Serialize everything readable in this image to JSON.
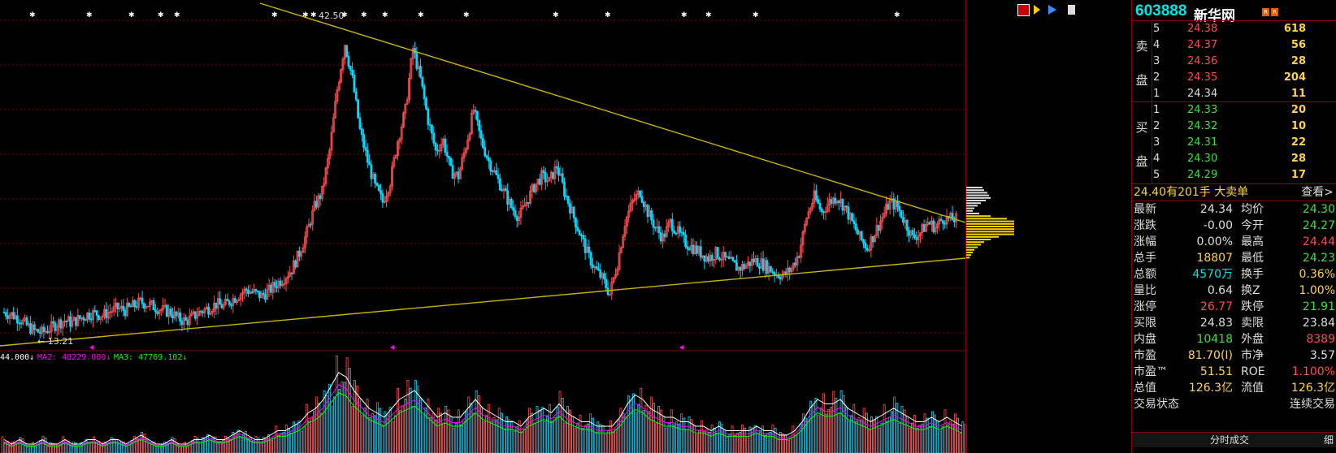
{
  "app": {
    "markers_top": [
      "42.50"
    ],
    "low_label": "13.21"
  },
  "ma_legend": {
    "ma1": "44.000↓",
    "ma2": "MA2: 48229.000↓",
    "ma3": "MA3: 47769.102↓",
    "ma1_color": "#ffffff",
    "ma2_color": "#ff00ff",
    "ma3_color": "#00ff00"
  },
  "colors": {
    "up": "#ff4c4c",
    "down": "#00d8ff",
    "grid": "#8b0000",
    "trendline": "#c8b400",
    "volume_profile": "#ffd700"
  },
  "stock": {
    "code": "603888",
    "name": "新华网",
    "badge": "R"
  },
  "sell_label": [
    "卖",
    "盘"
  ],
  "buy_label": [
    "买",
    "盘"
  ],
  "sell_orders": [
    {
      "level": "5",
      "price": "24.38",
      "volume": "618"
    },
    {
      "level": "4",
      "price": "24.37",
      "volume": "56"
    },
    {
      "level": "3",
      "price": "24.36",
      "volume": "28"
    },
    {
      "level": "2",
      "price": "24.35",
      "volume": "204"
    },
    {
      "level": "1",
      "price": "24.34",
      "volume": "11"
    }
  ],
  "buy_orders": [
    {
      "level": "1",
      "price": "24.33",
      "volume": "20"
    },
    {
      "level": "2",
      "price": "24.32",
      "volume": "10"
    },
    {
      "level": "3",
      "price": "24.31",
      "volume": "22"
    },
    {
      "level": "4",
      "price": "24.30",
      "volume": "28"
    },
    {
      "level": "5",
      "price": "24.29",
      "volume": "17"
    }
  ],
  "big_order": {
    "text": "24.40有201手 大卖单",
    "action": "查看>"
  },
  "quote": [
    {
      "l1": "最新",
      "v1": "24.34",
      "c1": "wht",
      "l2": "均价",
      "v2": "24.30",
      "c2": "grn"
    },
    {
      "l1": "涨跌",
      "v1": "-0.00",
      "c1": "wht",
      "l2": "今开",
      "v2": "24.27",
      "c2": "grn"
    },
    {
      "l1": "涨幅",
      "v1": "0.00%",
      "c1": "wht",
      "l2": "最高",
      "v2": "24.44",
      "c2": "red"
    },
    {
      "l1": "总手",
      "v1": "18807",
      "c1": "yel",
      "l2": "最低",
      "v2": "24.23",
      "c2": "grn"
    },
    {
      "l1": "总额",
      "v1": "4570万",
      "c1": "cyn",
      "l2": "换手",
      "v2": "0.36%",
      "c2": "yel"
    },
    {
      "l1": "量比",
      "v1": "0.64",
      "c1": "wht",
      "l2": "换Z",
      "v2": "1.00%",
      "c2": "yel"
    },
    {
      "l1": "涨停",
      "v1": "26.77",
      "c1": "red",
      "l2": "跌停",
      "v2": "21.91",
      "c2": "grn"
    },
    {
      "l1": "买限",
      "v1": "24.83",
      "c1": "wht",
      "l2": "卖限",
      "v2": "23.84",
      "c2": "wht"
    },
    {
      "l1": "内盘",
      "v1": "10418",
      "c1": "grn",
      "l2": "外盘",
      "v2": "8389",
      "c2": "red"
    },
    {
      "l1": "市盈",
      "v1": "81.70(I)",
      "c1": "yel",
      "l2": "市净",
      "v2": "3.57",
      "c2": "wht"
    },
    {
      "l1": "市盈™",
      "v1": "51.51",
      "c1": "yel",
      "l2": "ROE",
      "v2": "1.100%",
      "c2": "red"
    },
    {
      "l1": "总值",
      "v1": "126.3亿",
      "c1": "yel",
      "l2": "流值",
      "v2": "126.3亿",
      "c2": "yel"
    },
    {
      "l1": "交易状态",
      "v1": "",
      "c1": "wht",
      "l2": "",
      "v2": "连续交易",
      "c2": "wht"
    }
  ],
  "tick_header": {
    "title": "分时成交",
    "right": "细"
  },
  "chart_data": {
    "type": "candlestick",
    "symbol": "603888",
    "y_range": [
      12.0,
      44.0
    ],
    "close_series": [
      15.2,
      15.0,
      14.6,
      13.9,
      13.4,
      13.21,
      13.6,
      14.1,
      14.4,
      14.2,
      14.6,
      15.0,
      15.1,
      14.9,
      15.3,
      15.6,
      15.4,
      15.8,
      16.2,
      16.0,
      15.7,
      15.4,
      15.2,
      14.6,
      14.3,
      14.8,
      15.3,
      15.6,
      16.0,
      15.8,
      16.4,
      16.9,
      17.4,
      17.1,
      16.8,
      17.3,
      18.0,
      18.6,
      19.4,
      21.0,
      23.0,
      25.5,
      27.0,
      31.0,
      37.0,
      41.5,
      38.0,
      33.0,
      30.0,
      27.5,
      26.0,
      28.0,
      32.0,
      35.0,
      41.0,
      38.0,
      34.0,
      31.0,
      32.0,
      29.0,
      28.5,
      31.5,
      35.0,
      32.0,
      30.0,
      28.5,
      27.0,
      25.5,
      24.5,
      26.0,
      27.5,
      28.5,
      28.0,
      29.5,
      27.0,
      25.0,
      23.0,
      21.0,
      19.5,
      18.5,
      17.0,
      20.0,
      24.0,
      26.0,
      27.0,
      25.0,
      23.5,
      22.5,
      24.0,
      23.0,
      22.0,
      21.5,
      21.0,
      20.5,
      21.0,
      20.5,
      20.0,
      19.5,
      19.8,
      20.3,
      20.0,
      19.5,
      19.0,
      18.8,
      19.5,
      21.0,
      24.5,
      26.5,
      25.0,
      26.0,
      26.5,
      25.5,
      24.0,
      22.5,
      21.5,
      23.0,
      24.5,
      26.0,
      25.5,
      24.0,
      22.5,
      23.0,
      24.0,
      23.5,
      24.4,
      24.3,
      24.34
    ],
    "volume_series": [
      3,
      2,
      3,
      2,
      2,
      3,
      2,
      2,
      3,
      2,
      2,
      3,
      3,
      2,
      3,
      3,
      2,
      3,
      4,
      3,
      2,
      2,
      3,
      2,
      2,
      3,
      3,
      4,
      3,
      3,
      4,
      5,
      4,
      3,
      3,
      4,
      5,
      5,
      6,
      7,
      9,
      10,
      12,
      15,
      18,
      17,
      14,
      12,
      10,
      9,
      8,
      10,
      12,
      13,
      14,
      12,
      10,
      8,
      9,
      8,
      8,
      10,
      12,
      10,
      9,
      8,
      7,
      7,
      6,
      8,
      9,
      10,
      9,
      11,
      9,
      8,
      7,
      7,
      6,
      6,
      6,
      8,
      11,
      13,
      12,
      10,
      9,
      8,
      8,
      7,
      7,
      6,
      6,
      5,
      6,
      5,
      5,
      5,
      5,
      6,
      5,
      5,
      4,
      4,
      5,
      7,
      10,
      12,
      11,
      11,
      12,
      10,
      9,
      8,
      7,
      8,
      9,
      10,
      9,
      8,
      7,
      7,
      8,
      7,
      8,
      7,
      6
    ],
    "moving_averages": [
      "MA2",
      "MA3"
    ],
    "annotations": [
      "42.50",
      "13.21"
    ]
  }
}
